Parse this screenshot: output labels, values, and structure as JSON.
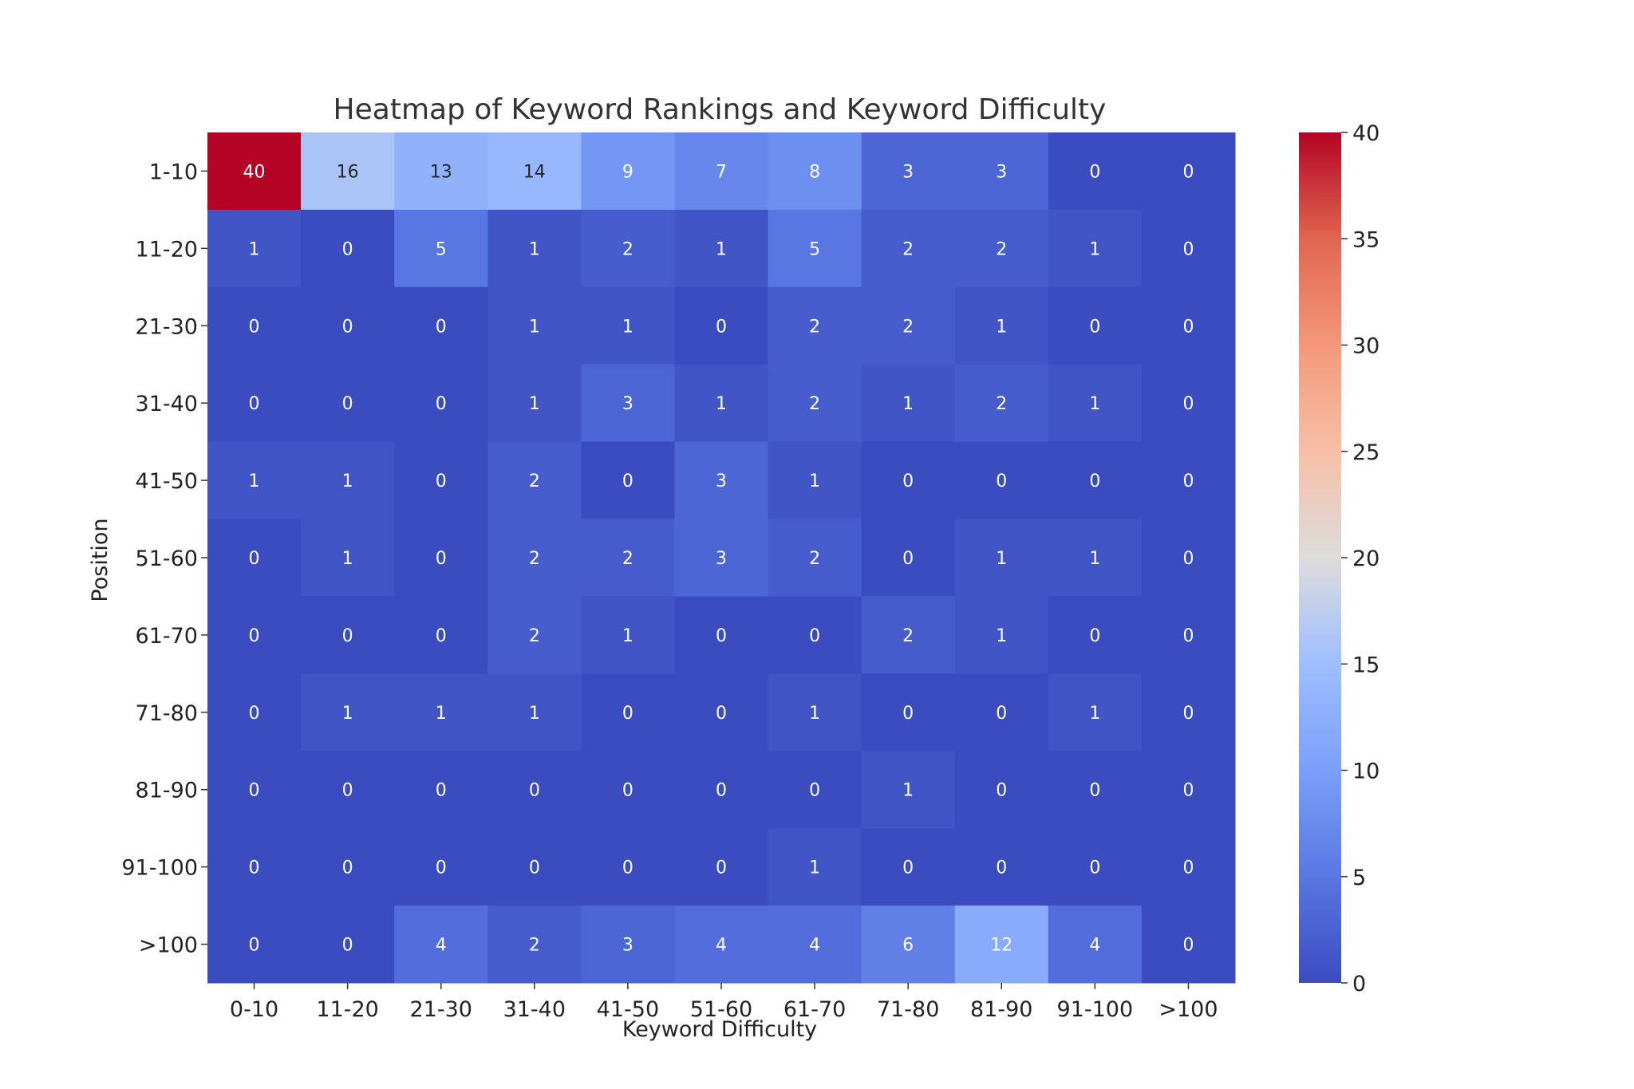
{
  "chart_data": {
    "type": "heatmap",
    "title": "Heatmap of Keyword Rankings and Keyword Difficulty",
    "xlabel": "Keyword Difficulty",
    "ylabel": "Position",
    "x_categories": [
      "0-10",
      "11-20",
      "21-30",
      "31-40",
      "41-50",
      "51-60",
      "61-70",
      "71-80",
      "81-90",
      "91-100",
      ">100"
    ],
    "y_categories": [
      "1-10",
      "11-20",
      "21-30",
      "31-40",
      "41-50",
      "51-60",
      "61-70",
      "71-80",
      "81-90",
      "91-100",
      ">100"
    ],
    "values": [
      [
        40,
        16,
        13,
        14,
        9,
        7,
        8,
        3,
        3,
        0,
        0
      ],
      [
        1,
        0,
        5,
        1,
        2,
        1,
        5,
        2,
        2,
        1,
        0
      ],
      [
        0,
        0,
        0,
        1,
        1,
        0,
        2,
        2,
        1,
        0,
        0
      ],
      [
        0,
        0,
        0,
        1,
        3,
        1,
        2,
        1,
        2,
        1,
        0
      ],
      [
        1,
        1,
        0,
        2,
        0,
        3,
        1,
        0,
        0,
        0,
        0
      ],
      [
        0,
        1,
        0,
        2,
        2,
        3,
        2,
        0,
        1,
        1,
        0
      ],
      [
        0,
        0,
        0,
        2,
        1,
        0,
        0,
        2,
        1,
        0,
        0
      ],
      [
        0,
        1,
        1,
        1,
        0,
        0,
        1,
        0,
        0,
        1,
        0
      ],
      [
        0,
        0,
        0,
        0,
        0,
        0,
        0,
        1,
        0,
        0,
        0
      ],
      [
        0,
        0,
        0,
        0,
        0,
        0,
        1,
        0,
        0,
        0,
        0
      ],
      [
        0,
        0,
        4,
        2,
        3,
        4,
        4,
        6,
        12,
        4,
        0
      ]
    ],
    "colorbar": {
      "range": [
        0,
        40
      ],
      "ticks": [
        0,
        5,
        10,
        15,
        20,
        25,
        30,
        35,
        40
      ],
      "colormap": "coolwarm"
    },
    "annotations": true,
    "grid": false
  }
}
